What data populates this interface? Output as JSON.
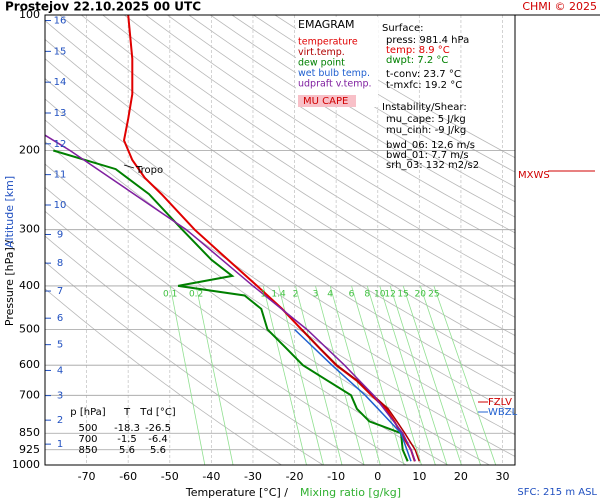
{
  "chart_data": {
    "type": "emagram",
    "title": "Prostejov    22.10.2025 00 UTC",
    "credit": "CHMI © 2025",
    "xlabel": "Temperature [°C]  /",
    "x2label": "Mixing ratio [g/kg]",
    "ylabel": "Pressure [hPa]  /",
    "y2label": "Altitude [km]",
    "footer": "SFC: 215 m ASL",
    "xlim": [
      -80,
      33
    ],
    "xticks": [
      -70,
      -60,
      -50,
      -40,
      -30,
      -20,
      -10,
      0,
      10,
      20,
      30
    ],
    "ylim": [
      1000,
      100
    ],
    "ylog": true,
    "yticks": [
      100,
      200,
      300,
      400,
      500,
      600,
      700,
      850,
      925,
      1000
    ],
    "y2ticks": [
      1,
      2,
      3,
      4,
      5,
      6,
      7,
      8,
      9,
      10,
      11,
      12,
      13,
      14,
      15,
      16
    ],
    "mixing_ratios": [
      0.1,
      0.2,
      1,
      1.4,
      2,
      3,
      4,
      6,
      8,
      10,
      12,
      15,
      20,
      25
    ],
    "legend_title": "EMAGRAM",
    "series": [
      {
        "name": "temperature",
        "color": "#e00000",
        "y": [
          981,
          925,
          850,
          800,
          750,
          700,
          650,
          600,
          550,
          500,
          450,
          400,
          350,
          300,
          250,
          230,
          210,
          190,
          170,
          150,
          125,
          100
        ],
        "x": [
          8.9,
          8,
          5.6,
          4,
          2,
          -1.5,
          -5,
          -10,
          -14,
          -18.3,
          -23,
          -29,
          -36,
          -44,
          -52,
          -56,
          -59,
          -61,
          -60,
          -59,
          -59,
          -60
        ]
      },
      {
        "name": "virt.temp.",
        "color": "#b00000",
        "y": [
          981,
          925,
          850,
          800,
          750,
          700,
          650,
          600,
          550,
          500
        ],
        "x": [
          10,
          9,
          6.5,
          4.6,
          2.5,
          -1.1,
          -4.8,
          -9.8,
          -13.9,
          -18.2
        ]
      },
      {
        "name": "dew point",
        "color": "#008000",
        "y": [
          981,
          925,
          850,
          800,
          750,
          700,
          650,
          600,
          550,
          500,
          450,
          420,
          400,
          380,
          350,
          300,
          250,
          220,
          200
        ],
        "x": [
          7.2,
          6,
          5.6,
          -2,
          -5,
          -6.4,
          -12,
          -18,
          -22,
          -26.5,
          -28,
          -32,
          -48,
          -35,
          -40,
          -47,
          -55,
          -63,
          -78
        ]
      },
      {
        "name": "wet bulb temp.",
        "color": "#2060d0",
        "y": [
          981,
          925,
          850,
          700,
          600,
          500
        ],
        "x": [
          8,
          7,
          5.6,
          -3,
          -11,
          -20
        ]
      },
      {
        "name": "udpraft v.temp.",
        "color": "#8020a0",
        "y": [
          981,
          925,
          850,
          700,
          600,
          500,
          400,
          300,
          200,
          185
        ],
        "x": [
          9,
          8,
          6,
          -1,
          -8,
          -17,
          -30,
          -46,
          -74,
          -80
        ]
      }
    ],
    "cape_label": "MU CAPE",
    "stats": [
      "Surface:",
      "press: 981.4 hPa",
      "temp: 8.9 °C",
      "dwpt: 7.2 °C",
      "t-conv: 23.7 °C",
      "t-mxfc: 19.2 °C",
      "Instability/Shear:",
      "mu_cape: 5 J/kg",
      "mu_cinh: -9 J/kg",
      "bwd_06: 12.6 m/s",
      "bwd_01: 7.7 m/s",
      "srh_03: 132 m2/s2"
    ],
    "table": {
      "header": [
        "p [hPa]",
        "T",
        "Td [°C]"
      ],
      "rows": [
        [
          "500",
          "-18.3",
          "-26.5"
        ],
        [
          "700",
          "-1.5",
          "-6.4"
        ],
        [
          "850",
          "5.6",
          "5.6"
        ]
      ]
    },
    "annotations": {
      "tropo": "Tropo",
      "fzlv": "FZLV",
      "wbzl": "WBZL",
      "mxws": "MXWS"
    }
  }
}
